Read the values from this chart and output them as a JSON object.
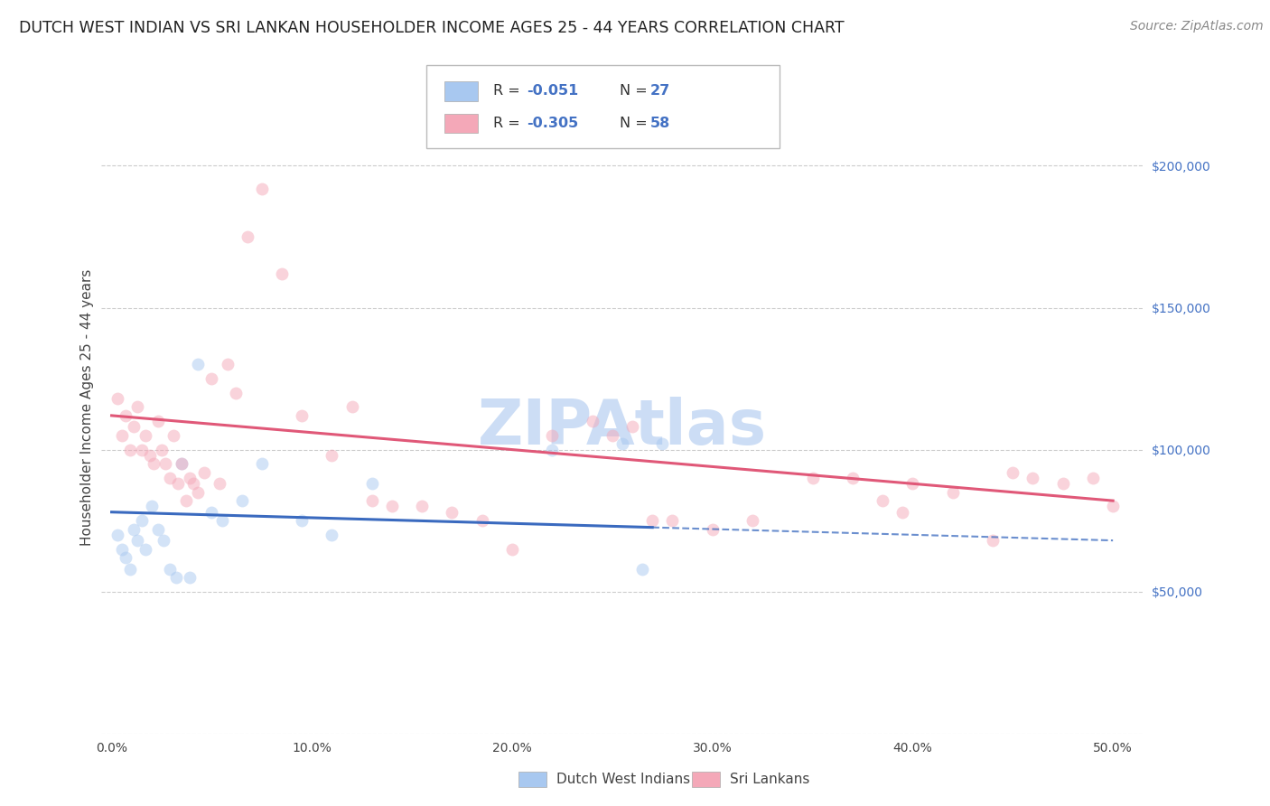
{
  "title": "DUTCH WEST INDIAN VS SRI LANKAN HOUSEHOLDER INCOME AGES 25 - 44 YEARS CORRELATION CHART",
  "source": "Source: ZipAtlas.com",
  "blue_color": "#a8c8f0",
  "pink_color": "#f4a8b8",
  "blue_line_color": "#3a6abf",
  "pink_line_color": "#e05878",
  "ylim": [
    0,
    230000
  ],
  "xlim": [
    -0.5,
    51.5
  ],
  "ylabel_right_vals": [
    200000,
    150000,
    100000,
    50000
  ],
  "ylabel_right_labels": [
    "$200,000",
    "$150,000",
    "$100,000",
    "$50,000"
  ],
  "xlabel_vals": [
    0,
    10,
    20,
    30,
    40,
    50
  ],
  "xlabel_labels": [
    "0.0%",
    "10.0%",
    "20.0%",
    "30.0%",
    "40.0%",
    "50.0%"
  ],
  "grid_vals": [
    0,
    50000,
    100000,
    150000,
    200000
  ],
  "watermark": "ZIPAtlas",
  "legend_r_blue": "-0.051",
  "legend_n_blue": "27",
  "legend_r_pink": "-0.305",
  "legend_n_pink": "58",
  "legend_label_blue": "Dutch West Indians",
  "legend_label_pink": "Sri Lankans",
  "blue_x": [
    0.3,
    0.5,
    0.7,
    0.9,
    1.1,
    1.3,
    1.5,
    1.7,
    2.0,
    2.3,
    2.6,
    2.9,
    3.2,
    3.5,
    3.9,
    4.3,
    5.0,
    5.5,
    6.5,
    7.5,
    9.5,
    11.0,
    13.0,
    22.0,
    25.5,
    26.5,
    27.5
  ],
  "blue_y": [
    70000,
    65000,
    62000,
    58000,
    72000,
    68000,
    75000,
    65000,
    80000,
    72000,
    68000,
    58000,
    55000,
    95000,
    55000,
    130000,
    78000,
    75000,
    82000,
    95000,
    75000,
    70000,
    88000,
    100000,
    102000,
    58000,
    102000
  ],
  "pink_x": [
    0.3,
    0.5,
    0.7,
    0.9,
    1.1,
    1.3,
    1.5,
    1.7,
    1.9,
    2.1,
    2.3,
    2.5,
    2.7,
    2.9,
    3.1,
    3.3,
    3.5,
    3.7,
    3.9,
    4.1,
    4.3,
    4.6,
    5.0,
    5.4,
    5.8,
    6.2,
    6.8,
    7.5,
    8.5,
    9.5,
    11.0,
    12.0,
    13.0,
    14.0,
    15.5,
    17.0,
    18.5,
    20.0,
    22.0,
    24.0,
    25.0,
    26.0,
    27.0,
    28.0,
    30.0,
    32.0,
    35.0,
    37.0,
    38.5,
    39.5,
    40.0,
    42.0,
    44.0,
    45.0,
    46.0,
    47.5,
    49.0,
    50.0
  ],
  "pink_y": [
    118000,
    105000,
    112000,
    100000,
    108000,
    115000,
    100000,
    105000,
    98000,
    95000,
    110000,
    100000,
    95000,
    90000,
    105000,
    88000,
    95000,
    82000,
    90000,
    88000,
    85000,
    92000,
    125000,
    88000,
    130000,
    120000,
    175000,
    192000,
    162000,
    112000,
    98000,
    115000,
    82000,
    80000,
    80000,
    78000,
    75000,
    65000,
    105000,
    110000,
    105000,
    108000,
    75000,
    75000,
    72000,
    75000,
    90000,
    90000,
    82000,
    78000,
    88000,
    85000,
    68000,
    92000,
    90000,
    88000,
    90000,
    80000
  ],
  "blue_trend_x0": 0,
  "blue_trend_y0": 78000,
  "blue_trend_x1": 50,
  "blue_trend_y1": 68000,
  "blue_solid_end": 27,
  "pink_trend_x0": 0,
  "pink_trend_y0": 112000,
  "pink_trend_x1": 50,
  "pink_trend_y1": 82000,
  "background_color": "#ffffff",
  "grid_color": "#cccccc",
  "marker_size": 100,
  "marker_alpha": 0.5,
  "title_fontsize": 12.5,
  "source_fontsize": 10,
  "tick_fontsize": 10,
  "axis_label_fontsize": 11,
  "watermark_fontsize": 50,
  "watermark_color": "#ccddf5"
}
